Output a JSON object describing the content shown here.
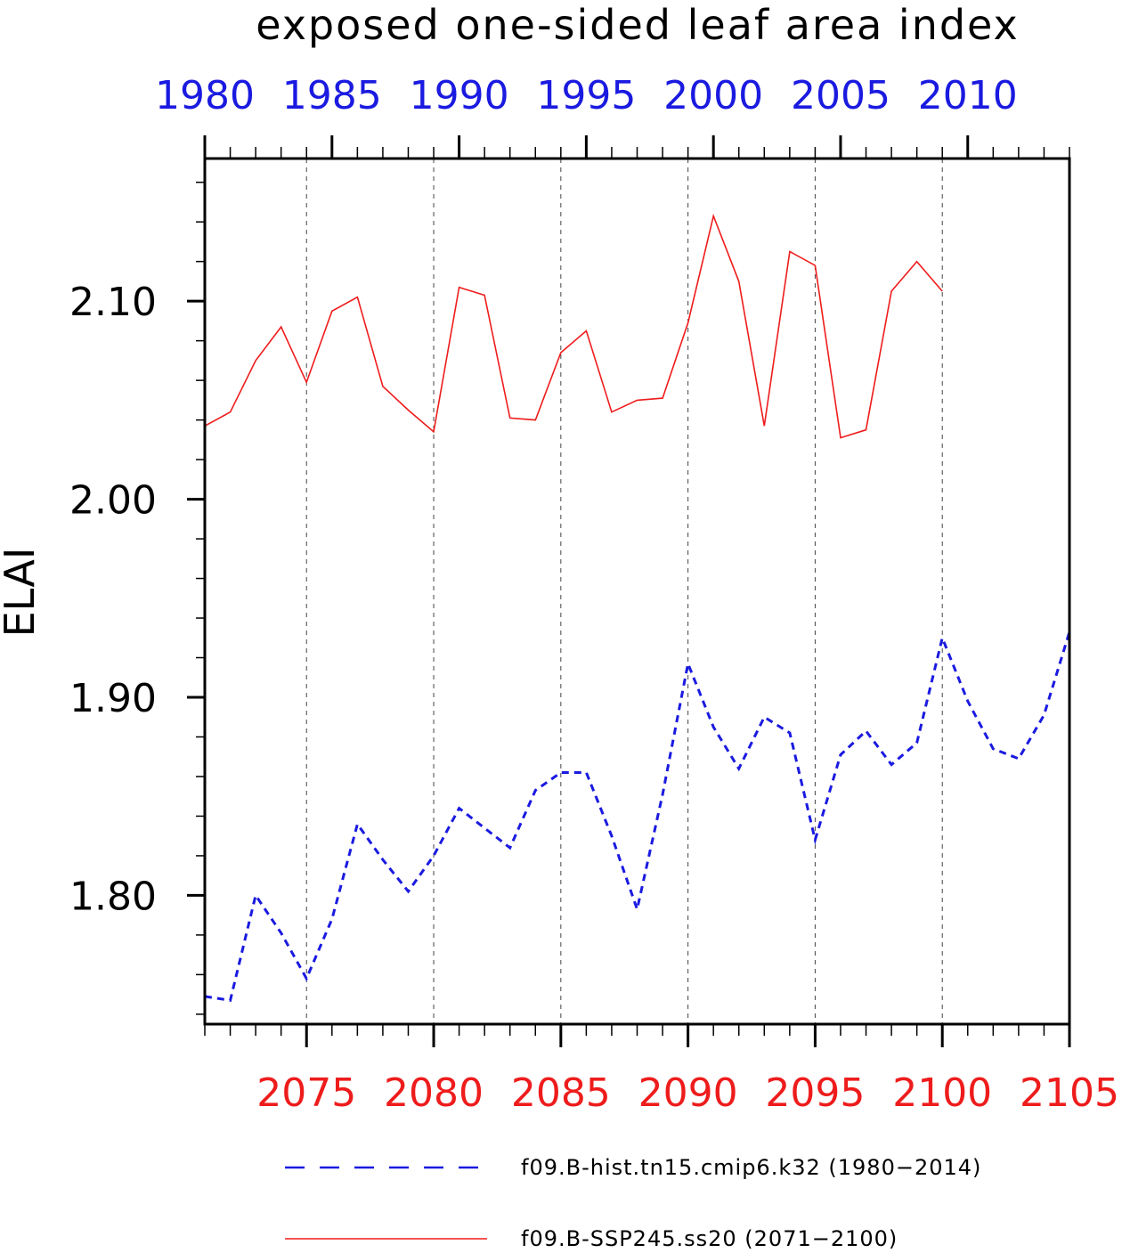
{
  "chart_data": {
    "type": "line",
    "title": "exposed one-sided leaf area index",
    "ylabel": "ELAI",
    "xlabel": "",
    "ylim": [
      1.735,
      2.172
    ],
    "yticks": [
      1.8,
      1.9,
      2.0,
      2.1
    ],
    "ytick_labels": [
      "1.80",
      "1.90",
      "2.00",
      "2.10"
    ],
    "grid": "vertical dashed",
    "legend_position": "bottom",
    "bottom_axis": {
      "color": "#ee1c1c",
      "range": [
        2071,
        2105
      ],
      "ticks": [
        2075,
        2080,
        2085,
        2090,
        2095,
        2100,
        2105
      ],
      "tick_labels": [
        "2075",
        "2080",
        "2085",
        "2090",
        "2095",
        "2100",
        "2105"
      ]
    },
    "top_axis": {
      "color": "#1a1ae0",
      "range": [
        1980,
        2014
      ],
      "ticks": [
        1980,
        1985,
        1990,
        1995,
        2000,
        2005,
        2010
      ],
      "tick_labels": [
        "1980",
        "1985",
        "1990",
        "1995",
        "2000",
        "2005",
        "2010"
      ]
    },
    "series": [
      {
        "name": "f09.B-hist.tn15.cmip6.k32 (1980−2014)",
        "color": "#1a1ae0",
        "style": "dashed",
        "axis": "top",
        "x": [
          1980,
          1981,
          1982,
          1983,
          1984,
          1985,
          1986,
          1987,
          1988,
          1989,
          1990,
          1991,
          1992,
          1993,
          1994,
          1995,
          1996,
          1997,
          1998,
          1999,
          2000,
          2001,
          2002,
          2003,
          2004,
          2005,
          2006,
          2007,
          2008,
          2009,
          2010,
          2011,
          2012,
          2013,
          2014
        ],
        "values": [
          1.749,
          1.747,
          1.8,
          1.781,
          1.758,
          1.788,
          1.836,
          1.818,
          1.802,
          1.82,
          1.844,
          1.834,
          1.824,
          1.853,
          1.862,
          1.862,
          1.83,
          1.793,
          1.851,
          1.917,
          1.885,
          1.864,
          1.89,
          1.882,
          1.828,
          1.871,
          1.883,
          1.866,
          1.877,
          1.93,
          1.898,
          1.874,
          1.869,
          1.891,
          1.933
        ]
      },
      {
        "name": "f09.B-SSP245.ss20 (2071−2100)",
        "color": "#ee1c1c",
        "style": "solid",
        "axis": "bottom",
        "x": [
          2071,
          2072,
          2073,
          2074,
          2075,
          2076,
          2077,
          2078,
          2079,
          2080,
          2081,
          2082,
          2083,
          2084,
          2085,
          2086,
          2087,
          2088,
          2089,
          2090,
          2091,
          2092,
          2093,
          2094,
          2095,
          2096,
          2097,
          2098,
          2099,
          2100
        ],
        "values": [
          2.037,
          2.044,
          2.07,
          2.087,
          2.059,
          2.095,
          2.102,
          2.057,
          2.045,
          2.034,
          2.107,
          2.103,
          2.041,
          2.04,
          2.074,
          2.085,
          2.044,
          2.05,
          2.051,
          2.089,
          2.143,
          2.11,
          2.037,
          2.125,
          2.118,
          2.031,
          2.035,
          2.105,
          2.12,
          2.105
        ]
      }
    ]
  }
}
